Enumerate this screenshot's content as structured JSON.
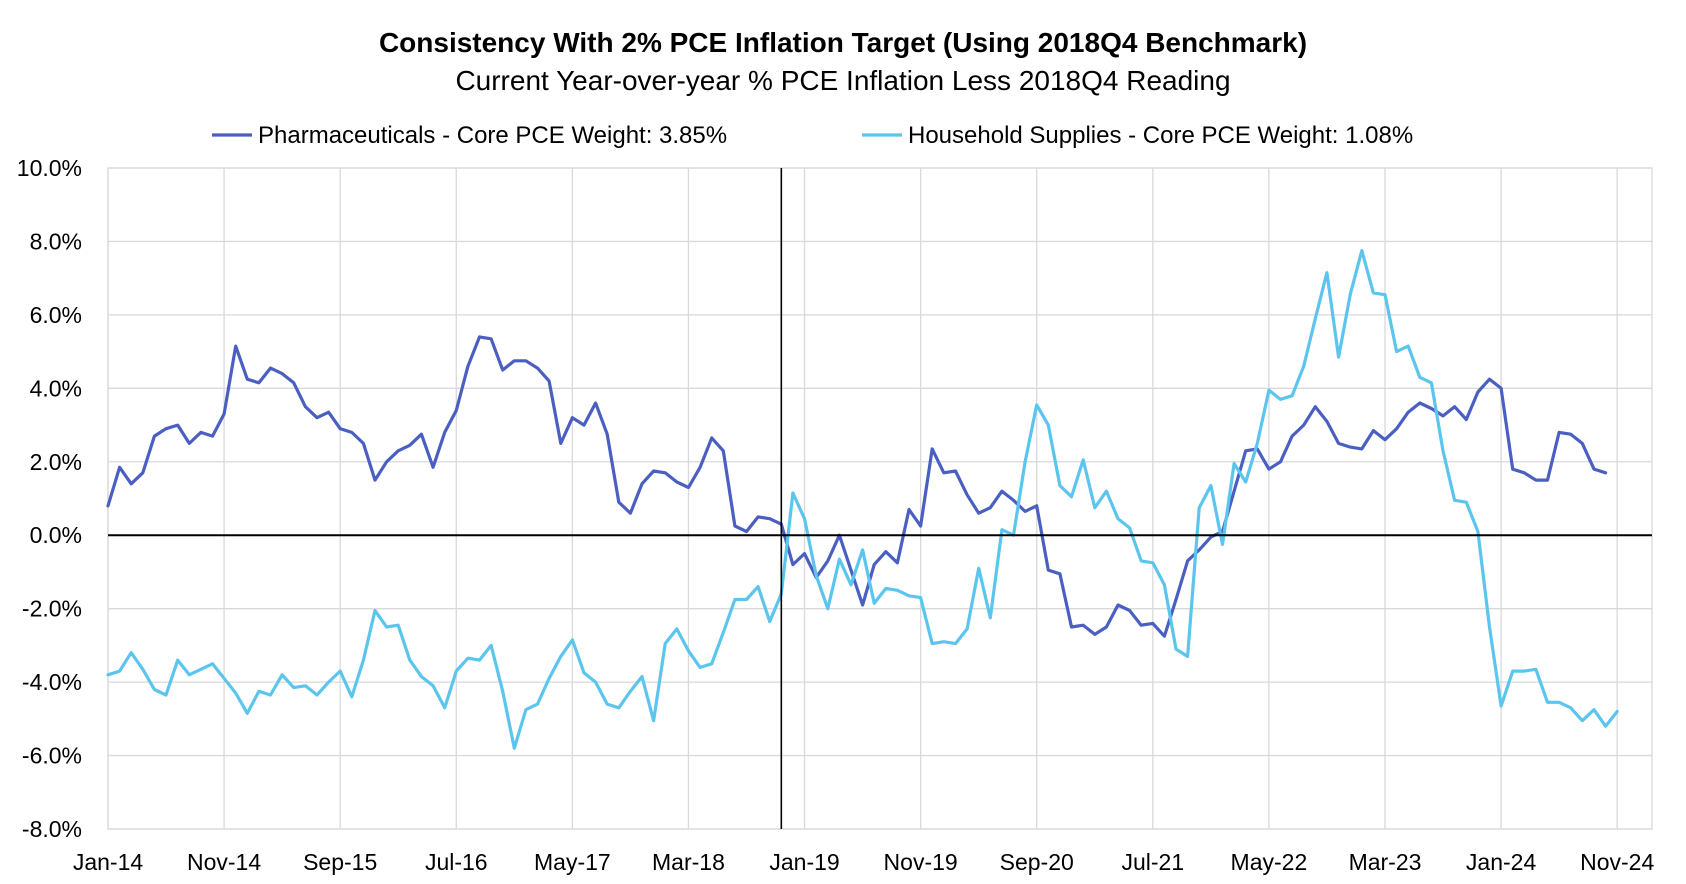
{
  "chart_data": {
    "type": "line",
    "title": "Consistency With 2% PCE Inflation Target (Using 2018Q4 Benchmark)",
    "subtitle": "Current Year-over-year % PCE Inflation Less 2018Q4 Reading",
    "ylabel": "",
    "xlabel": "",
    "ylim": [
      -8,
      10
    ],
    "y_ticks": [
      -8,
      -6,
      -4,
      -2,
      0,
      2,
      4,
      6,
      8,
      10
    ],
    "y_tick_labels": [
      "-8.0%",
      "-6.0%",
      "-4.0%",
      "-2.0%",
      "0.0%",
      "2.0%",
      "4.0%",
      "6.0%",
      "8.0%",
      "10.0%"
    ],
    "x_start": "Jan-14",
    "x_end": "Feb-25",
    "x_tick_labels": [
      "Jan-14",
      "Nov-14",
      "Sep-15",
      "Jul-16",
      "May-17",
      "Mar-18",
      "Jan-19",
      "Nov-19",
      "Sep-20",
      "Jul-21",
      "May-22",
      "Mar-23",
      "Jan-24",
      "Nov-24"
    ],
    "benchmark_line": "Nov-18",
    "grid": true,
    "legend_position": "top",
    "series": [
      {
        "name": "Pharmaceuticals - Core PCE Weight: 3.85%",
        "color": "#4a5fc1",
        "values": [
          0.8,
          1.85,
          1.4,
          1.7,
          2.7,
          2.9,
          3.0,
          2.5,
          2.8,
          2.7,
          3.3,
          5.15,
          4.25,
          4.15,
          4.55,
          4.4,
          4.15,
          3.5,
          3.2,
          3.35,
          2.9,
          2.8,
          2.5,
          1.5,
          2.0,
          2.3,
          2.45,
          2.75,
          1.85,
          2.8,
          3.4,
          4.6,
          5.4,
          5.35,
          4.5,
          4.75,
          4.75,
          4.55,
          4.2,
          2.5,
          3.2,
          3.0,
          3.6,
          2.75,
          0.9,
          0.6,
          1.4,
          1.75,
          1.7,
          1.45,
          1.3,
          1.85,
          2.65,
          2.3,
          0.25,
          0.1,
          0.5,
          0.45,
          0.3,
          -0.8,
          -0.5,
          -1.15,
          -0.7,
          0.0,
          -0.95,
          -1.9,
          -0.8,
          -0.45,
          -0.75,
          0.7,
          0.25,
          2.35,
          1.7,
          1.75,
          1.1,
          0.6,
          0.75,
          1.2,
          0.95,
          0.65,
          0.8,
          -0.95,
          -1.05,
          -2.5,
          -2.45,
          -2.7,
          -2.5,
          -1.9,
          -2.05,
          -2.45,
          -2.4,
          -2.75,
          -1.75,
          -0.7,
          -0.4,
          -0.05,
          0.1,
          1.2,
          2.3,
          2.35,
          1.8,
          2.0,
          2.7,
          3.0,
          3.5,
          3.1,
          2.5,
          2.4,
          2.35,
          2.85,
          2.6,
          2.9,
          3.35,
          3.6,
          3.45,
          3.25,
          3.5,
          3.15,
          3.9,
          4.25,
          4.0,
          1.8,
          1.7,
          1.5,
          1.5,
          2.8,
          2.75,
          2.5,
          1.8,
          1.7
        ]
      },
      {
        "name": "Household Supplies - Core PCE Weight: 1.08%",
        "color": "#5bc5ee",
        "values": [
          -3.8,
          -3.7,
          -3.2,
          -3.65,
          -4.2,
          -4.35,
          -3.4,
          -3.8,
          -3.65,
          -3.5,
          -3.9,
          -4.3,
          -4.85,
          -4.25,
          -4.35,
          -3.8,
          -4.15,
          -4.1,
          -4.35,
          -4.0,
          -3.7,
          -4.4,
          -3.4,
          -2.05,
          -2.5,
          -2.45,
          -3.4,
          -3.85,
          -4.1,
          -4.7,
          -3.7,
          -3.35,
          -3.4,
          -3.0,
          -4.25,
          -5.8,
          -4.75,
          -4.6,
          -3.9,
          -3.3,
          -2.85,
          -3.75,
          -4.0,
          -4.6,
          -4.7,
          -4.25,
          -3.85,
          -5.05,
          -2.95,
          -2.55,
          -3.15,
          -3.6,
          -3.5,
          -2.65,
          -1.75,
          -1.75,
          -1.4,
          -2.35,
          -1.6,
          1.15,
          0.45,
          -1.1,
          -2.0,
          -0.65,
          -1.35,
          -0.4,
          -1.85,
          -1.45,
          -1.5,
          -1.65,
          -1.7,
          -2.95,
          -2.9,
          -2.95,
          -2.55,
          -0.9,
          -2.25,
          0.15,
          0.0,
          2.0,
          3.55,
          3.0,
          1.35,
          1.05,
          2.05,
          0.75,
          1.2,
          0.45,
          0.2,
          -0.7,
          -0.75,
          -1.35,
          -3.1,
          -3.3,
          0.75,
          1.35,
          -0.25,
          1.95,
          1.45,
          2.5,
          3.95,
          3.7,
          3.8,
          4.6,
          5.9,
          7.15,
          4.85,
          6.55,
          7.75,
          6.6,
          6.55,
          5.0,
          5.15,
          4.3,
          4.15,
          2.3,
          0.95,
          0.9,
          0.1,
          -2.5,
          -4.65,
          -3.7,
          -3.7,
          -3.65,
          -4.55,
          -4.55,
          -4.7,
          -5.05,
          -4.75,
          -5.2,
          -4.8
        ]
      }
    ]
  }
}
